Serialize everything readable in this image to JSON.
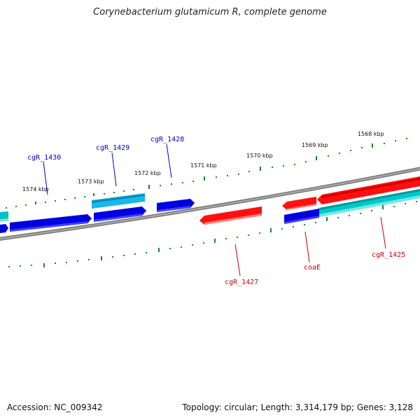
{
  "title": "Corynebacterium glutamicum R, complete genome",
  "footer": {
    "accession": "Accession: NC_009342",
    "topology": "Topology: circular; Length: 3,314,179 bp; Genes: 3,128"
  },
  "ticks": [
    {
      "label": "1574 kbp"
    },
    {
      "label": "1573 kbp"
    },
    {
      "label": "1572 kbp"
    },
    {
      "label": "1571 kbp"
    },
    {
      "label": "1570 kbp"
    },
    {
      "label": "1569 kbp"
    },
    {
      "label": "1568 kbp"
    }
  ],
  "gene_labels": [
    {
      "name": "cgR_1430",
      "strand": "forward"
    },
    {
      "name": "cgR_1429",
      "strand": "forward"
    },
    {
      "name": "cgR_1428",
      "strand": "forward"
    },
    {
      "name": "cgR_1427",
      "strand": "reverse"
    },
    {
      "name": "coaE",
      "strand": "reverse"
    },
    {
      "name": "cgR_1425",
      "strand": "reverse"
    }
  ],
  "colors": {
    "forward_gene": "#0000e0",
    "forward_gene_alt": "#00b8e8",
    "reverse_gene": "#ff1010",
    "reverse_gene_alt": "#00c8c8",
    "backbone": "#888888",
    "tick": "#1a8a1a",
    "forward_label": "#0000cc",
    "reverse_label": "#cc0000"
  }
}
